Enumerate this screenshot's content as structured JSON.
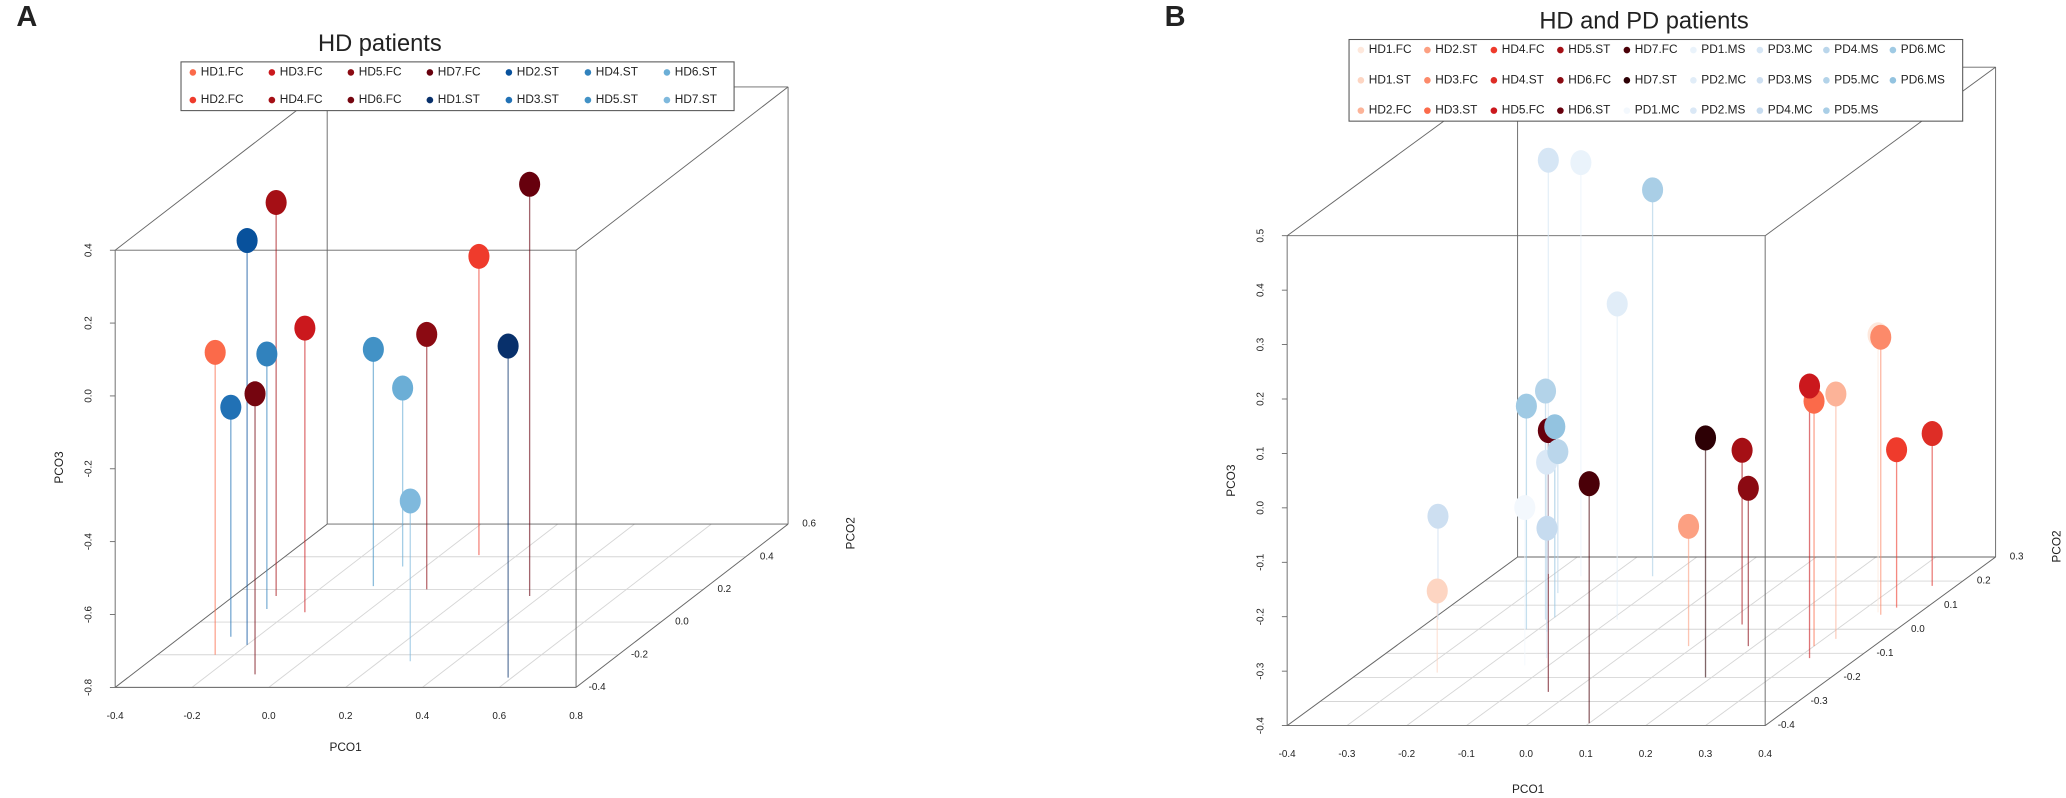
{
  "chart_data": [
    {
      "type": "scatter3d",
      "panel": "A",
      "title": "HD patients",
      "xlabel": "PCO1",
      "ylabel": "PCO2",
      "zlabel": "PCO3",
      "xlim": [
        -0.4,
        0.8
      ],
      "ylim": [
        -0.4,
        0.6
      ],
      "zlim": [
        -0.8,
        0.4
      ],
      "xticks": [
        -0.4,
        -0.2,
        {
          "value": 0,
          "label": "0.0"
        },
        0.2,
        0.4,
        0.6,
        0.8
      ],
      "yticks": [
        -0.4,
        -0.2,
        {
          "value": 0,
          "label": "0.0"
        },
        0.2,
        0.4,
        0.6
      ],
      "zticks": [
        -0.8,
        -0.6,
        -0.4,
        -0.2,
        {
          "value": 0,
          "label": "0.0"
        },
        0.2,
        0.4
      ],
      "series": [
        {
          "name": "HD1.FC",
          "color": "#fb6a4a",
          "x": [
            -0.25
          ],
          "y": [
            -0.2
          ],
          "z": [
            0.03
          ]
        },
        {
          "name": "HD2.FC",
          "color": "#ef3b2c",
          "x": [
            0.1
          ],
          "y": [
            0.41
          ],
          "z": [
            0.02
          ]
        },
        {
          "name": "HD3.FC",
          "color": "#cb181d",
          "x": [
            -0.16
          ],
          "y": [
            0.06
          ],
          "z": [
            -0.02
          ]
        },
        {
          "name": "HD4.FC",
          "color": "#a50f15",
          "x": [
            -0.29
          ],
          "y": [
            0.16
          ],
          "z": [
            0.28
          ]
        },
        {
          "name": "HD5.FC",
          "color": "#8b0a12",
          "x": [
            0.08
          ],
          "y": [
            0.2
          ],
          "z": [
            -0.1
          ]
        },
        {
          "name": "HD6.FC",
          "color": "#75050f",
          "x": [
            -0.08
          ],
          "y": [
            -0.32
          ],
          "z": [
            -0.03
          ]
        },
        {
          "name": "HD7.FC",
          "color": "#67000d",
          "x": [
            0.37
          ],
          "y": [
            0.16
          ],
          "z": [
            0.33
          ]
        },
        {
          "name": "HD1.ST",
          "color": "#08306b",
          "x": [
            0.59
          ],
          "y": [
            -0.34
          ],
          "z": [
            0.11
          ]
        },
        {
          "name": "HD2.ST",
          "color": "#08519c",
          "x": [
            -0.2
          ],
          "y": [
            -0.14
          ],
          "z": [
            0.31
          ]
        },
        {
          "name": "HD3.ST",
          "color": "#2171b5",
          "x": [
            -0.27
          ],
          "y": [
            -0.09
          ],
          "z": [
            -0.17
          ]
        },
        {
          "name": "HD4.ST",
          "color": "#3182bd",
          "x": [
            -0.27
          ],
          "y": [
            0.08
          ],
          "z": [
            -0.1
          ]
        },
        {
          "name": "HD5.ST",
          "color": "#4292c6",
          "x": [
            -0.07
          ],
          "y": [
            0.22
          ],
          "z": [
            -0.15
          ]
        },
        {
          "name": "HD6.ST",
          "color": "#6baed6",
          "x": [
            -0.06
          ],
          "y": [
            0.34
          ],
          "z": [
            -0.31
          ]
        },
        {
          "name": "HD7.ST",
          "color": "#7fb9dd",
          "x": [
            0.28
          ],
          "y": [
            -0.24
          ],
          "z": [
            -0.36
          ]
        }
      ]
    },
    {
      "type": "scatter3d",
      "panel": "B",
      "title": "HD and PD patients",
      "xlabel": "PCO1",
      "ylabel": "PCO2",
      "zlabel": "PCO3",
      "xlim": [
        -0.4,
        0.4
      ],
      "ylim": [
        -0.4,
        0.3
      ],
      "zlim": [
        -0.4,
        0.5
      ],
      "xticks": [
        -0.4,
        -0.3,
        -0.2,
        -0.1,
        {
          "value": 0,
          "label": "0.0"
        },
        0.1,
        0.2,
        0.3,
        0.4
      ],
      "yticks": [
        -0.4,
        -0.3,
        -0.2,
        -0.1,
        {
          "value": 0,
          "label": "0.0"
        },
        0.1,
        0.2,
        0.3
      ],
      "zticks": [
        -0.4,
        -0.3,
        -0.2,
        -0.1,
        {
          "value": 0,
          "label": "0.0"
        },
        0.1,
        0.2,
        0.3,
        0.4,
        0.5
      ],
      "series": [
        {
          "name": "HD1.FC",
          "color": "#fee8dc",
          "x": [
            0.33
          ],
          "y": [
            0.07
          ],
          "z": [
            0.11
          ]
        },
        {
          "name": "HD1.ST",
          "color": "#fdd5c2",
          "x": [
            -0.27
          ],
          "y": [
            -0.18
          ],
          "z": [
            -0.25
          ]
        },
        {
          "name": "HD2.FC",
          "color": "#fcb398",
          "x": [
            0.32
          ],
          "y": [
            -0.04
          ],
          "z": [
            0.05
          ]
        },
        {
          "name": "HD2.ST",
          "color": "#fca082",
          "x": [
            0.09
          ],
          "y": [
            -0.07
          ],
          "z": [
            -0.18
          ]
        },
        {
          "name": "HD3.FC",
          "color": "#fc8a6a",
          "x": [
            0.34
          ],
          "y": [
            0.06
          ],
          "z": [
            0.11
          ]
        },
        {
          "name": "HD3.ST",
          "color": "#fb6a4a",
          "x": [
            0.3
          ],
          "y": [
            -0.07
          ],
          "z": [
            0.05
          ]
        },
        {
          "name": "HD4.FC",
          "color": "#ef3b2c",
          "x": [
            0.35
          ],
          "y": [
            0.09
          ],
          "z": [
            -0.11
          ]
        },
        {
          "name": "HD4.ST",
          "color": "#de2d26",
          "x": [
            0.36
          ],
          "y": [
            0.18
          ],
          "z": [
            -0.12
          ]
        },
        {
          "name": "HD5.FC",
          "color": "#cb181d",
          "x": [
            0.32
          ],
          "y": [
            -0.12
          ],
          "z": [
            0.1
          ]
        },
        {
          "name": "HD5.ST",
          "color": "#a50f15",
          "x": [
            0.13
          ],
          "y": [
            0.02
          ],
          "z": [
            -0.08
          ]
        },
        {
          "name": "HD6.FC",
          "color": "#8b0a12",
          "x": [
            0.19
          ],
          "y": [
            -0.07
          ],
          "z": [
            -0.11
          ]
        },
        {
          "name": "HD6.ST",
          "color": "#67000d",
          "x": [
            -0.04
          ],
          "y": [
            -0.26
          ],
          "z": [
            0.08
          ]
        },
        {
          "name": "HD7.FC",
          "color": "#4a0008",
          "x": [
            0.1
          ],
          "y": [
            -0.39
          ],
          "z": [
            0.04
          ]
        },
        {
          "name": "HD7.ST",
          "color": "#2d0005",
          "x": [
            0.19
          ],
          "y": [
            -0.2
          ],
          "z": [
            0.04
          ]
        },
        {
          "name": "PD1.MC",
          "color": "#f3f8fd",
          "x": [
            -0.14
          ],
          "y": [
            -0.15
          ],
          "z": [
            -0.11
          ]
        },
        {
          "name": "PD1.MS",
          "color": "#eaf3fb",
          "x": [
            -0.25
          ],
          "y": [
            0.22
          ],
          "z": [
            0.36
          ]
        },
        {
          "name": "PD2.MC",
          "color": "#e1edf8",
          "x": [
            -0.09
          ],
          "y": [
            0.04
          ],
          "z": [
            0.18
          ]
        },
        {
          "name": "PD2.MS",
          "color": "#dae8f6",
          "x": [
            -0.12
          ],
          "y": [
            -0.12
          ],
          "z": [
            -0.04
          ]
        },
        {
          "name": "PD3.MC",
          "color": "#d6e6f5",
          "x": [
            -0.31
          ],
          "y": [
            0.23
          ],
          "z": [
            0.36
          ]
        },
        {
          "name": "PD3.MS",
          "color": "#cddff1",
          "x": [
            -0.39
          ],
          "y": [
            0.04
          ],
          "z": [
            -0.21
          ]
        },
        {
          "name": "PD4.MC",
          "color": "#c6dbef",
          "x": [
            -0.18
          ],
          "y": [
            -0.01
          ],
          "z": [
            -0.21
          ]
        },
        {
          "name": "PD4.MS",
          "color": "#bad6eb",
          "x": [
            -0.25
          ],
          "y": [
            0.15
          ],
          "z": [
            -0.14
          ]
        },
        {
          "name": "PD5.MC",
          "color": "#b3d3e9",
          "x": [
            -0.21
          ],
          "y": [
            0.04
          ],
          "z": [
            0.02
          ]
        },
        {
          "name": "PD5.MS",
          "color": "#a9cee6",
          "x": [
            -0.13
          ],
          "y": [
            0.22
          ],
          "z": [
            0.31
          ]
        },
        {
          "name": "PD6.MC",
          "color": "#9fcae4",
          "x": [
            -0.22
          ],
          "y": [
            0
          ],
          "z": [
            0.01
          ]
        },
        {
          "name": "PD6.MS",
          "color": "#93c3e0",
          "x": [
            -0.2
          ],
          "y": [
            0.05
          ],
          "z": [
            -0.05
          ]
        }
      ]
    }
  ]
}
